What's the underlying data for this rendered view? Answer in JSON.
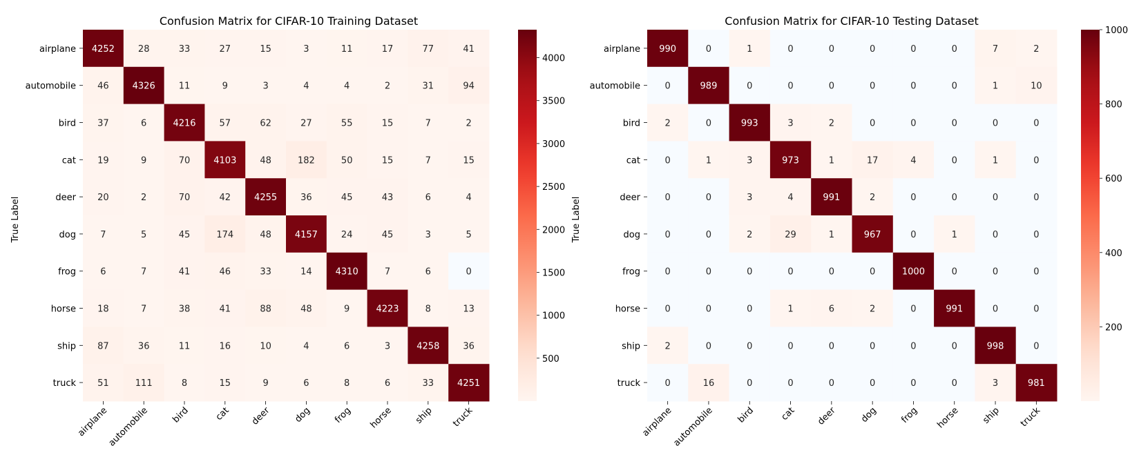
{
  "chart_data": [
    {
      "type": "heatmap",
      "title": "Confusion Matrix for CIFAR-10 Training Dataset",
      "ylabel": "True Label",
      "xlabel": "",
      "x_categories": [
        "airplane",
        "automobile",
        "bird",
        "cat",
        "deer",
        "dog",
        "frog",
        "horse",
        "ship",
        "truck"
      ],
      "y_categories": [
        "airplane",
        "automobile",
        "bird",
        "cat",
        "deer",
        "dog",
        "frog",
        "horse",
        "ship",
        "truck"
      ],
      "values": [
        [
          4252,
          28,
          33,
          27,
          15,
          3,
          11,
          17,
          77,
          41
        ],
        [
          46,
          4326,
          11,
          9,
          3,
          4,
          4,
          2,
          31,
          94
        ],
        [
          37,
          6,
          4216,
          57,
          62,
          27,
          55,
          15,
          7,
          2
        ],
        [
          19,
          9,
          70,
          4103,
          48,
          182,
          50,
          15,
          7,
          15
        ],
        [
          20,
          2,
          70,
          42,
          4255,
          36,
          45,
          43,
          6,
          4
        ],
        [
          7,
          5,
          45,
          174,
          48,
          4157,
          24,
          45,
          3,
          5
        ],
        [
          6,
          7,
          41,
          46,
          33,
          14,
          4310,
          7,
          6,
          0
        ],
        [
          18,
          7,
          38,
          41,
          88,
          48,
          9,
          4223,
          8,
          13
        ],
        [
          87,
          36,
          11,
          16,
          10,
          4,
          6,
          3,
          4258,
          36
        ],
        [
          51,
          111,
          8,
          15,
          9,
          6,
          8,
          6,
          33,
          4251
        ]
      ],
      "colormap": "Reds",
      "vmin": 0,
      "vmax": 4326,
      "colorbar_ticks": [
        500,
        1000,
        1500,
        2000,
        2500,
        3000,
        3500,
        4000
      ],
      "zero_color": "#f7fbff"
    },
    {
      "type": "heatmap",
      "title": "Confusion Matrix for CIFAR-10 Testing Dataset",
      "ylabel": "True Label",
      "xlabel": "",
      "x_categories": [
        "airplane",
        "automobile",
        "bird",
        "cat",
        "deer",
        "dog",
        "frog",
        "horse",
        "ship",
        "truck"
      ],
      "y_categories": [
        "airplane",
        "automobile",
        "bird",
        "cat",
        "deer",
        "dog",
        "frog",
        "horse",
        "ship",
        "truck"
      ],
      "values": [
        [
          990,
          0,
          1,
          0,
          0,
          0,
          0,
          0,
          7,
          2
        ],
        [
          0,
          989,
          0,
          0,
          0,
          0,
          0,
          0,
          1,
          10
        ],
        [
          2,
          0,
          993,
          3,
          2,
          0,
          0,
          0,
          0,
          0
        ],
        [
          0,
          1,
          3,
          973,
          1,
          17,
          4,
          0,
          1,
          0
        ],
        [
          0,
          0,
          3,
          4,
          991,
          2,
          0,
          0,
          0,
          0
        ],
        [
          0,
          0,
          2,
          29,
          1,
          967,
          0,
          1,
          0,
          0
        ],
        [
          0,
          0,
          0,
          0,
          0,
          0,
          1000,
          0,
          0,
          0
        ],
        [
          0,
          0,
          0,
          1,
          6,
          2,
          0,
          991,
          0,
          0
        ],
        [
          2,
          0,
          0,
          0,
          0,
          0,
          0,
          0,
          998,
          0
        ],
        [
          0,
          16,
          0,
          0,
          0,
          0,
          0,
          0,
          3,
          981
        ]
      ],
      "colormap": "Reds",
      "vmin": 0,
      "vmax": 1000,
      "colorbar_ticks": [
        200,
        400,
        600,
        800,
        1000
      ],
      "zero_color": "#f7fbff"
    }
  ]
}
